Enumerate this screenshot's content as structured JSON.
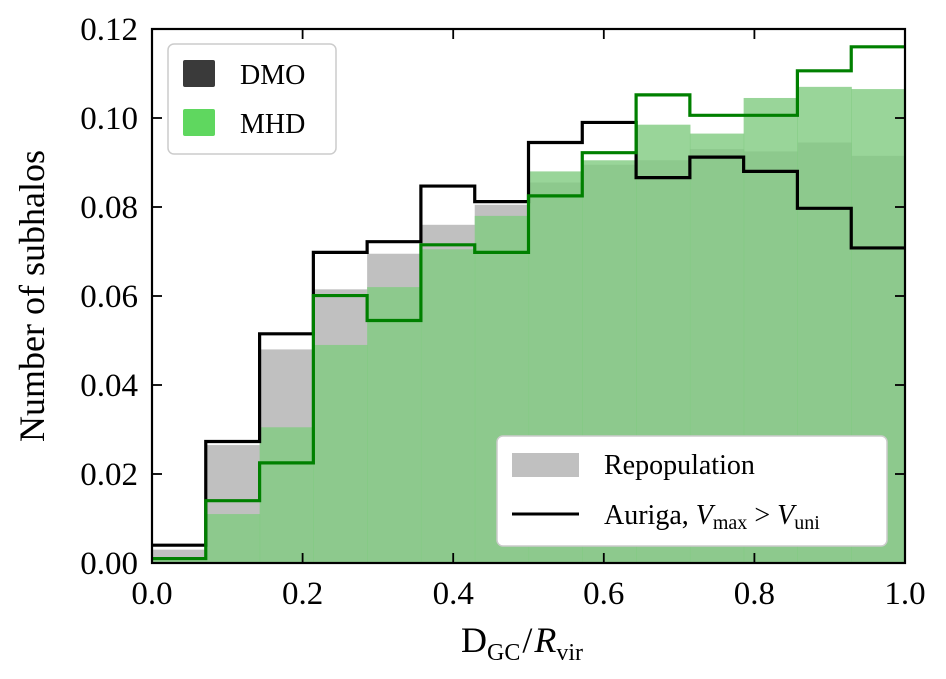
{
  "chart_data": {
    "type": "histogram",
    "xlabel": {
      "main": "D",
      "sub1": "GC",
      "sep": "/",
      "italic": "R",
      "sub2": "vir"
    },
    "ylabel": "Number of subhalos",
    "xlim": [
      0.0,
      1.0
    ],
    "ylim": [
      0.0,
      0.12
    ],
    "x_ticks": [
      0.0,
      0.2,
      0.4,
      0.6,
      0.8,
      1.0
    ],
    "x_tick_labels": [
      "0.0",
      "0.2",
      "0.4",
      "0.6",
      "0.8",
      "1.0"
    ],
    "y_ticks": [
      0.0,
      0.02,
      0.04,
      0.06,
      0.08,
      0.1,
      0.12
    ],
    "y_tick_labels": [
      "0.00",
      "0.02",
      "0.04",
      "0.06",
      "0.08",
      "0.10",
      "0.12"
    ],
    "bin_edges": [
      0.0,
      0.0714,
      0.1429,
      0.2143,
      0.2857,
      0.3571,
      0.4286,
      0.5,
      0.5714,
      0.6429,
      0.7143,
      0.7857,
      0.8571,
      0.9286,
      1.0
    ],
    "series": [
      {
        "name": "DMO",
        "kind": "repopulation-fill",
        "color": "#c0c0c0",
        "values": [
          0.003,
          0.0265,
          0.048,
          0.0615,
          0.0695,
          0.076,
          0.0805,
          0.0855,
          0.0895,
          0.0905,
          0.093,
          0.0925,
          0.0945,
          0.0915
        ]
      },
      {
        "name": "MHD",
        "kind": "repopulation-fill",
        "color": "#7fcb7f",
        "values": [
          0.001,
          0.011,
          0.0305,
          0.049,
          0.062,
          0.0705,
          0.078,
          0.088,
          0.0905,
          0.0985,
          0.0965,
          0.1045,
          0.107,
          0.1065
        ]
      },
      {
        "name": "DMO",
        "kind": "auriga-step",
        "color": "#000000",
        "values": [
          0.004,
          0.0273,
          0.0515,
          0.0698,
          0.0722,
          0.0847,
          0.0812,
          0.0945,
          0.099,
          0.0866,
          0.0912,
          0.088,
          0.0797,
          0.0708
        ]
      },
      {
        "name": "MHD",
        "kind": "auriga-step",
        "color": "#008000",
        "values": [
          0.001,
          0.014,
          0.0225,
          0.0601,
          0.0545,
          0.0715,
          0.0698,
          0.0825,
          0.0922,
          0.1052,
          0.1006,
          0.1006,
          0.1106,
          0.116
        ]
      }
    ],
    "legend_top_left": [
      {
        "label": "DMO",
        "color": "#3a3a3a"
      },
      {
        "label": "MHD",
        "color": "#5fd75f"
      }
    ],
    "legend_bottom_right": [
      {
        "label": "Repopulation",
        "style": "patch",
        "color": "#c0c0c0"
      },
      {
        "label_parts": {
          "pre": "Auriga, ",
          "v1": "V",
          "s1": "max",
          "op": " > ",
          "v2": "V",
          "s2": "uni"
        },
        "style": "line",
        "color": "#000000"
      }
    ]
  }
}
